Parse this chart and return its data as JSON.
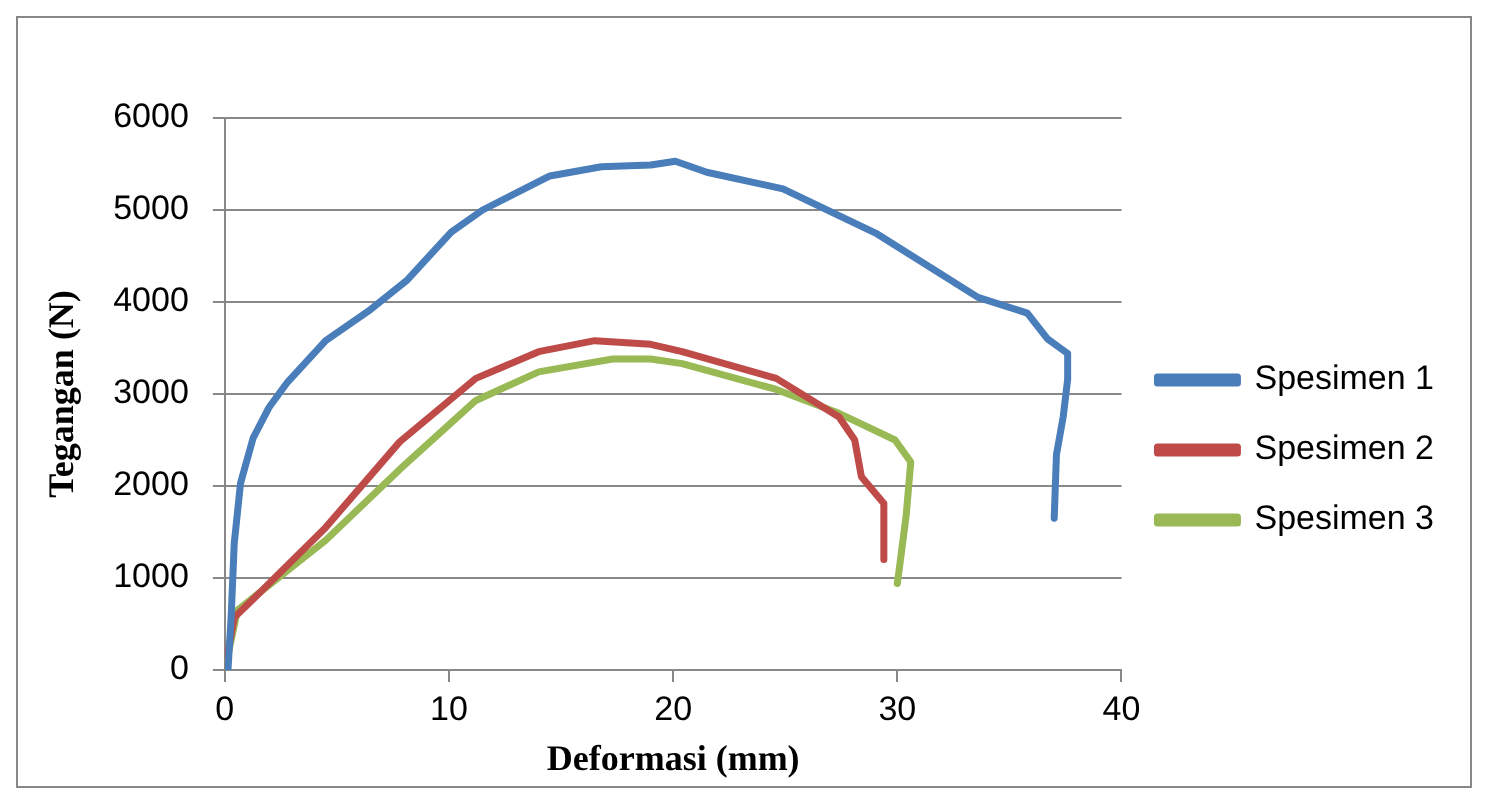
{
  "chart_data": {
    "type": "line",
    "xlabel": "Deformasi (mm)",
    "ylabel": "Tegangan (N)",
    "xlim": [
      0,
      40
    ],
    "xticks": [
      0,
      10,
      20,
      30,
      40
    ],
    "ylim": [
      0,
      6000
    ],
    "yticks": [
      0,
      1000,
      2000,
      3000,
      4000,
      5000,
      6000
    ],
    "grid": "y",
    "legend": "right",
    "marker": "none",
    "line_style": "solid",
    "series": [
      {
        "name": "Spesimen 1",
        "color": "#4a7ebb",
        "x": [
          0.14,
          0.28,
          0.42,
          0.7,
          1.26,
          1.96,
          2.8,
          4.5,
          6.4,
          8.1,
          10.1,
          11.5,
          14.5,
          16.8,
          19.0,
          20.1,
          21.5,
          24.9,
          29.1,
          33.6,
          35.8,
          36.7,
          37.6,
          37.6,
          37.4,
          37.1,
          37.0
        ],
        "values": [
          0,
          570,
          1380,
          2030,
          2520,
          2850,
          3130,
          3580,
          3900,
          4230,
          4760,
          5000,
          5370,
          5470,
          5490,
          5530,
          5410,
          5230,
          4740,
          4050,
          3880,
          3600,
          3440,
          3160,
          2750,
          2340,
          1650
        ]
      },
      {
        "name": "Spesimen 2",
        "color": "#be4b48",
        "x": [
          0,
          0.42,
          1.1,
          4.5,
          7.8,
          11.2,
          14.0,
          16.5,
          19.0,
          20.4,
          24.6,
          27.4,
          28.1,
          28.4,
          29.4,
          29.4
        ],
        "values": [
          0,
          570,
          730,
          1550,
          2480,
          3170,
          3460,
          3580,
          3540,
          3460,
          3170,
          2750,
          2500,
          2100,
          1810,
          1200
        ]
      },
      {
        "name": "Spesimen 3",
        "color": "#98b954",
        "x": [
          0,
          0.56,
          4.5,
          7.8,
          11.2,
          14.0,
          17.3,
          19.0,
          20.4,
          24.6,
          27.4,
          29.9,
          30.6,
          30.4,
          30.1,
          30.0
        ],
        "values": [
          0,
          650,
          1410,
          2180,
          2930,
          3240,
          3380,
          3380,
          3330,
          3050,
          2790,
          2500,
          2260,
          1690,
          1120,
          940
        ]
      }
    ]
  }
}
